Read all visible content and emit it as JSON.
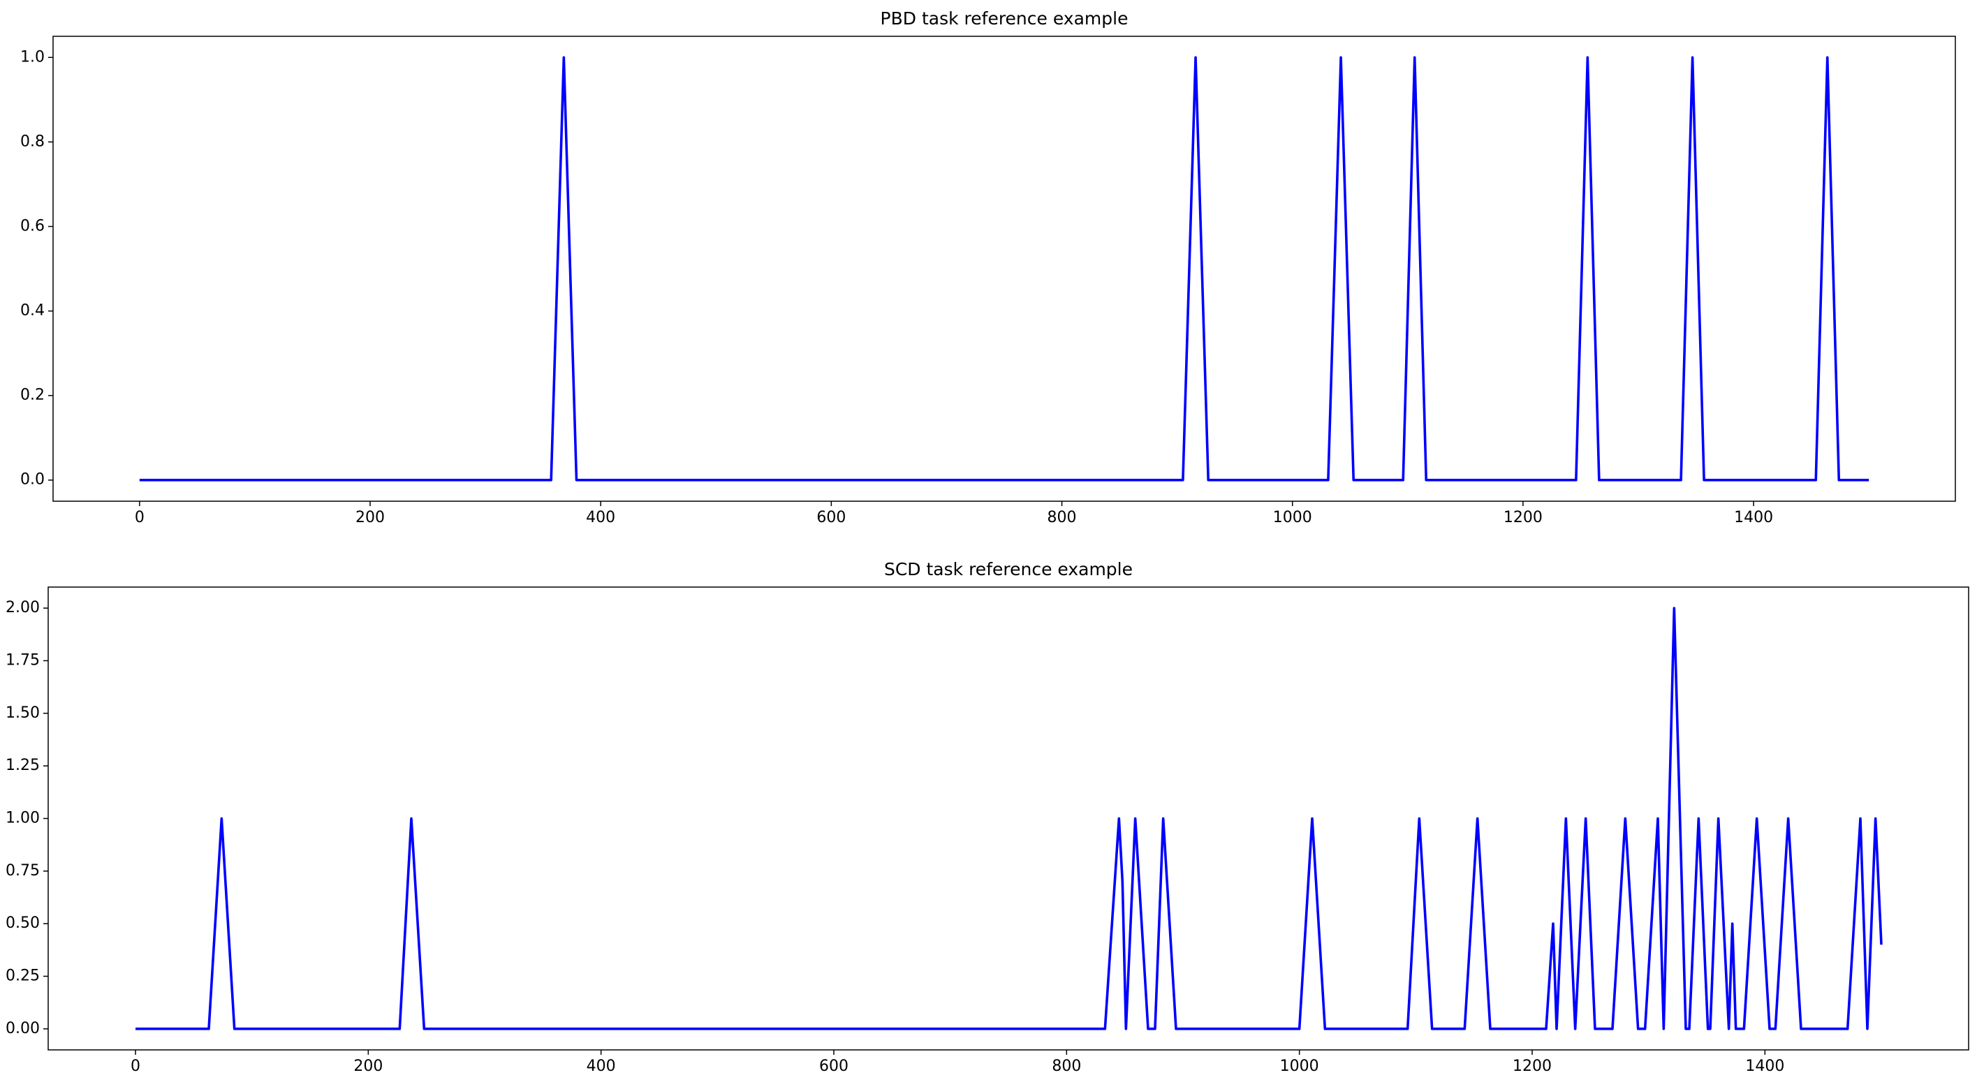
{
  "chart_data": [
    {
      "type": "line",
      "title": "PBD task reference example",
      "x": [
        0,
        357,
        368,
        379,
        905,
        916,
        927,
        1031,
        1042,
        1053,
        1096,
        1106,
        1116,
        1246,
        1256,
        1266,
        1337,
        1347,
        1357,
        1454,
        1464,
        1474,
        1500
      ],
      "series": [
        {
          "color": "#0000ff",
          "values": [
            0,
            0,
            1,
            0,
            0,
            1,
            0,
            0,
            1,
            0,
            0,
            1,
            0,
            0,
            1,
            0,
            0,
            1,
            0,
            0,
            1,
            0,
            0
          ]
        }
      ],
      "xlim": [
        -75,
        1575
      ],
      "xticks": [
        0,
        200,
        400,
        600,
        800,
        1000,
        1200,
        1400
      ],
      "ylim": [
        -0.05,
        1.05
      ],
      "yticks": [
        {
          "value": 0,
          "label": "0.0"
        },
        {
          "value": 0.2,
          "label": "0.2"
        },
        {
          "value": 0.4,
          "label": "0.4"
        },
        {
          "value": 0.6,
          "label": "0.6"
        },
        {
          "value": 0.8,
          "label": "0.8"
        },
        {
          "value": 1,
          "label": "1.0"
        }
      ]
    },
    {
      "type": "line",
      "title": "SCD task reference example",
      "x": [
        0,
        63,
        74,
        85,
        227,
        237,
        248,
        833,
        845,
        848,
        851,
        859,
        870,
        876,
        883,
        894,
        1000,
        1011,
        1022,
        1093,
        1103,
        1114,
        1142,
        1153,
        1164,
        1212,
        1218,
        1221,
        1229,
        1237,
        1246,
        1254,
        1269,
        1280,
        1291,
        1297,
        1308,
        1313,
        1322,
        1332,
        1335,
        1343,
        1351,
        1353,
        1360,
        1369,
        1372,
        1375,
        1382,
        1393,
        1404,
        1409,
        1420,
        1431,
        1471,
        1482,
        1488,
        1495,
        1500
      ],
      "series": [
        {
          "color": "#0000ff",
          "values": [
            0,
            0,
            1,
            0,
            0,
            1,
            0,
            0,
            1,
            0.7,
            0,
            1,
            0,
            0,
            1,
            0,
            0,
            1,
            0,
            0,
            1,
            0,
            0,
            1,
            0,
            0,
            0.5,
            0,
            1,
            0,
            1,
            0,
            0,
            1,
            0,
            0,
            1,
            0,
            2,
            0,
            0,
            1,
            0,
            0,
            1,
            0,
            0.5,
            0,
            0,
            1,
            0,
            0,
            1,
            0,
            0,
            1,
            0,
            1,
            0.4
          ]
        }
      ],
      "xlim": [
        -75,
        1575
      ],
      "xticks": [
        0,
        200,
        400,
        600,
        800,
        1000,
        1200,
        1400
      ],
      "ylim": [
        -0.1,
        2.1
      ],
      "yticks": [
        {
          "value": 0,
          "label": "0.00"
        },
        {
          "value": 0.25,
          "label": "0.25"
        },
        {
          "value": 0.5,
          "label": "0.50"
        },
        {
          "value": 0.75,
          "label": "0.75"
        },
        {
          "value": 1,
          "label": "1.00"
        },
        {
          "value": 1.25,
          "label": "1.25"
        },
        {
          "value": 1.5,
          "label": "1.50"
        },
        {
          "value": 1.75,
          "label": "1.75"
        },
        {
          "value": 2,
          "label": "2.00"
        }
      ]
    }
  ]
}
